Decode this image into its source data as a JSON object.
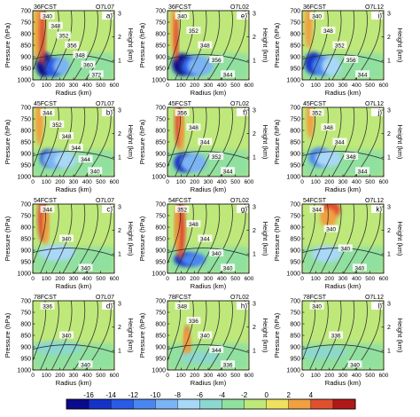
{
  "chart_data": {
    "type": "heatmap",
    "layout": "4 rows x 3 columns of pressure-radius cross sections",
    "x_axis": {
      "label": "Radius (km)",
      "ticks": [
        0,
        100,
        200,
        300,
        400,
        500,
        600
      ],
      "range": [
        0,
        600
      ]
    },
    "y_axis_left": {
      "label": "Pressure (hPa)",
      "ticks": [
        700,
        750,
        800,
        850,
        900,
        950,
        1000
      ],
      "range": [
        1000,
        700
      ]
    },
    "y_axis_right": {
      "label": "Height (km)",
      "ticks": [
        1,
        2,
        3
      ]
    },
    "colorbar": {
      "ticks": [
        -16,
        -14,
        -12,
        -10,
        -8,
        -6,
        -4,
        -2,
        0,
        2,
        4
      ],
      "colors": [
        "#0a0a8c",
        "#1432c8",
        "#2a5ae6",
        "#4a86f0",
        "#7ab4f4",
        "#a8d8f8",
        "#8cd8d0",
        "#90e0a0",
        "#bfe87a",
        "#f0e060",
        "#f0a040",
        "#e05030",
        "#b01818"
      ]
    },
    "panels": [
      {
        "id": "a",
        "time": "36FCST",
        "exp": "O7L07",
        "panel_label": "a)",
        "contour_labels": [
          "340",
          "348",
          "352",
          "356",
          "348",
          "360",
          "372"
        ]
      },
      {
        "id": "e",
        "time": "36FCST",
        "exp": "O7L02",
        "panel_label": "e)",
        "contour_labels": [
          "340",
          "352",
          "348",
          "356",
          "344"
        ]
      },
      {
        "id": "i",
        "time": "36FCST",
        "exp": "O7L12",
        "panel_label": "i)",
        "contour_labels": [
          "340",
          "348",
          "352",
          "356",
          "344"
        ]
      },
      {
        "id": "b",
        "time": "45FCST",
        "exp": "O7L07",
        "panel_label": "b)",
        "contour_labels": [
          "344",
          "352",
          "348",
          "344",
          "344",
          "340"
        ]
      },
      {
        "id": "f",
        "time": "45FCST",
        "exp": "O7L02",
        "panel_label": "f)",
        "contour_labels": [
          "356",
          "348",
          "344",
          "352",
          "344"
        ]
      },
      {
        "id": "j",
        "time": "45FCST",
        "exp": "O7L12",
        "panel_label": "j)",
        "contour_labels": [
          "352",
          "348",
          "344",
          "348",
          "344"
        ]
      },
      {
        "id": "c",
        "time": "54FCST",
        "exp": "O7L07",
        "panel_label": "c)",
        "contour_labels": [
          "344",
          "340",
          "340"
        ]
      },
      {
        "id": "g",
        "time": "54FCST",
        "exp": "O7L02",
        "panel_label": "g)",
        "contour_labels": [
          "352",
          "348",
          "344",
          "340",
          "340"
        ]
      },
      {
        "id": "k",
        "time": "54FCST",
        "exp": "O7L12",
        "panel_label": "k)",
        "contour_labels": [
          "344",
          "340",
          "340",
          "340"
        ]
      },
      {
        "id": "d",
        "time": "78FCST",
        "exp": "O7L07",
        "panel_label": "d)",
        "contour_labels": [
          "336",
          "340",
          "340"
        ]
      },
      {
        "id": "h",
        "time": "78FCST",
        "exp": "O7L02",
        "panel_label": "h)",
        "contour_labels": [
          "348",
          "336",
          "340",
          "344",
          "336"
        ]
      },
      {
        "id": "l",
        "time": "78FCST",
        "exp": "O7L12",
        "panel_label": "l)",
        "contour_labels": [
          "340",
          "336",
          "340"
        ]
      }
    ]
  }
}
